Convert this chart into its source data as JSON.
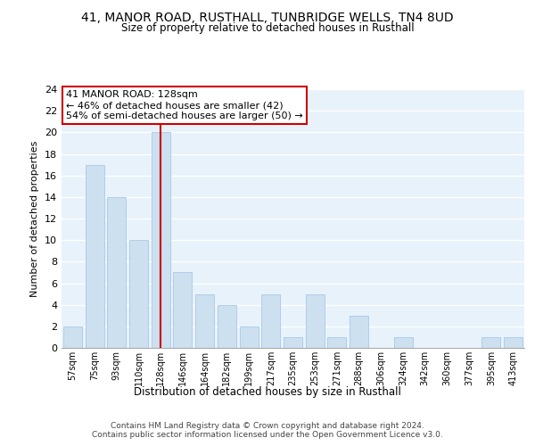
{
  "title1": "41, MANOR ROAD, RUSTHALL, TUNBRIDGE WELLS, TN4 8UD",
  "title2": "Size of property relative to detached houses in Rusthall",
  "xlabel": "Distribution of detached houses by size in Rusthall",
  "ylabel": "Number of detached properties",
  "categories": [
    "57sqm",
    "75sqm",
    "93sqm",
    "110sqm",
    "128sqm",
    "146sqm",
    "164sqm",
    "182sqm",
    "199sqm",
    "217sqm",
    "235sqm",
    "253sqm",
    "271sqm",
    "288sqm",
    "306sqm",
    "324sqm",
    "342sqm",
    "360sqm",
    "377sqm",
    "395sqm",
    "413sqm"
  ],
  "values": [
    2,
    17,
    14,
    10,
    20,
    7,
    5,
    4,
    2,
    5,
    1,
    5,
    1,
    3,
    0,
    1,
    0,
    0,
    0,
    1,
    1
  ],
  "highlight_index": 4,
  "bar_color": "#cce0f0",
  "bar_edge_color": "#a8c8e8",
  "highlight_line_color": "#cc0000",
  "ylim": [
    0,
    24
  ],
  "yticks": [
    0,
    2,
    4,
    6,
    8,
    10,
    12,
    14,
    16,
    18,
    20,
    22,
    24
  ],
  "annotation_text": "41 MANOR ROAD: 128sqm\n← 46% of detached houses are smaller (42)\n54% of semi-detached houses are larger (50) →",
  "annotation_box_color": "#ffffff",
  "annotation_box_edge_color": "#cc0000",
  "footer_text": "Contains HM Land Registry data © Crown copyright and database right 2024.\nContains public sector information licensed under the Open Government Licence v3.0.",
  "background_color": "#e8f2fb",
  "grid_color": "#ffffff",
  "fig_bg": "#ffffff"
}
